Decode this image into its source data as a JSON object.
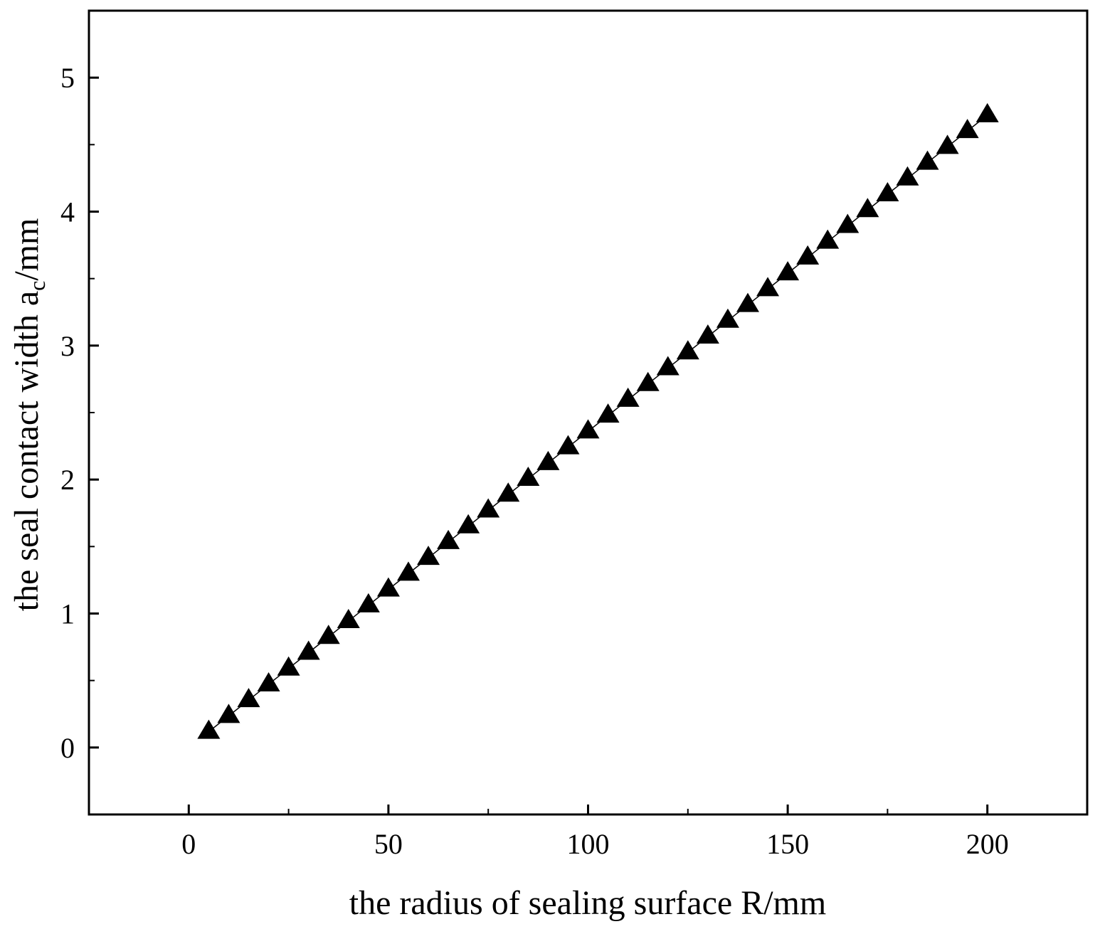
{
  "chart_data": {
    "type": "scatter",
    "title": "",
    "xlabel": "the radius of sealing surface R/mm",
    "ylabel_main": "the seal contact width a",
    "ylabel_sub": "c",
    "ylabel_unit": "/mm",
    "xlim": [
      -25,
      225
    ],
    "ylim": [
      -0.5,
      5.5
    ],
    "xticks": [
      0,
      50,
      100,
      150,
      200
    ],
    "xtick_labels": [
      "0",
      "50",
      "100",
      "150",
      "200"
    ],
    "xminor": [
      25,
      75,
      125,
      175
    ],
    "yticks": [
      0,
      1,
      2,
      3,
      4,
      5
    ],
    "ytick_labels": [
      "0",
      "1",
      "2",
      "3",
      "4",
      "5"
    ],
    "yminor": [
      0.5,
      1.5,
      2.5,
      3.5,
      4.5
    ],
    "grid": false,
    "marker": "filled-triangle",
    "color": "#000000",
    "series": [
      {
        "name": "a_c",
        "x": [
          5,
          10,
          15,
          20,
          25,
          30,
          35,
          40,
          45,
          50,
          55,
          60,
          65,
          70,
          75,
          80,
          85,
          90,
          95,
          100,
          105,
          110,
          115,
          120,
          125,
          130,
          135,
          140,
          145,
          150,
          155,
          160,
          165,
          170,
          175,
          180,
          185,
          190,
          195,
          200
        ],
        "y": [
          0.118,
          0.236,
          0.354,
          0.472,
          0.59,
          0.708,
          0.826,
          0.944,
          1.062,
          1.18,
          1.298,
          1.416,
          1.534,
          1.652,
          1.77,
          1.888,
          2.006,
          2.124,
          2.242,
          2.36,
          2.478,
          2.596,
          2.714,
          2.832,
          2.95,
          3.068,
          3.186,
          3.304,
          3.422,
          3.54,
          3.658,
          3.776,
          3.894,
          4.012,
          4.13,
          4.248,
          4.366,
          4.484,
          4.602,
          4.72
        ]
      }
    ]
  }
}
